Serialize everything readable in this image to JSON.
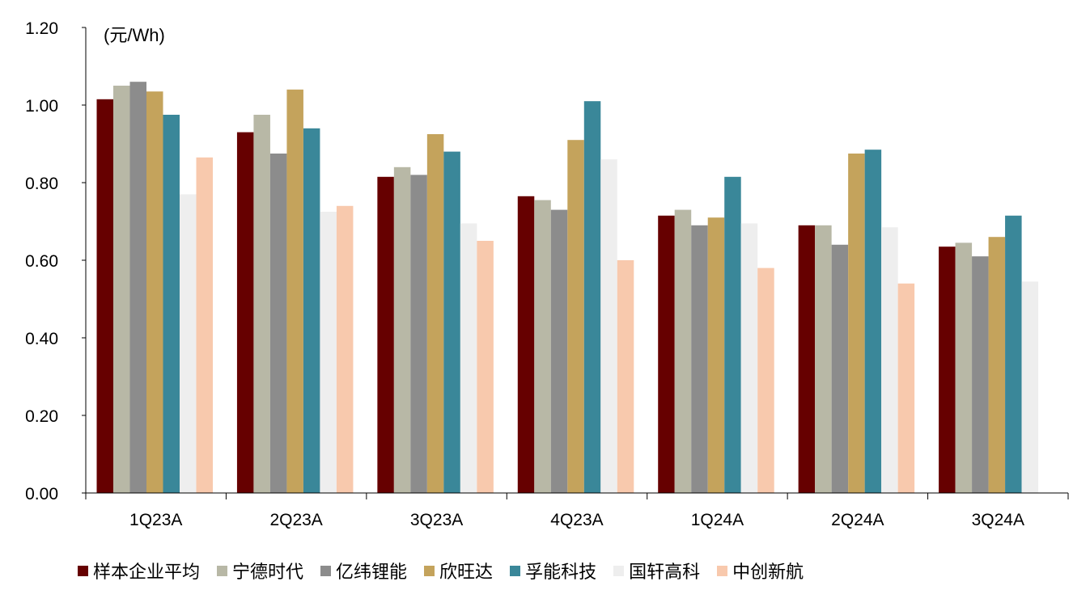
{
  "chart_data": {
    "type": "bar",
    "unit_label": "(元/Wh)",
    "categories": [
      "1Q23A",
      "2Q23A",
      "3Q23A",
      "4Q23A",
      "1Q24A",
      "2Q24A",
      "3Q24A"
    ],
    "ylim": [
      0,
      1.2
    ],
    "yticks": [
      "0.00",
      "0.20",
      "0.40",
      "0.60",
      "0.80",
      "1.00",
      "1.20"
    ],
    "grid": false,
    "legend_position": "bottom",
    "series": [
      {
        "name": "样本企业平均",
        "color": "#660000",
        "values": [
          1.015,
          0.93,
          0.815,
          0.765,
          0.715,
          0.69,
          0.635
        ]
      },
      {
        "name": "宁德时代",
        "color": "#B8B8A6",
        "values": [
          1.05,
          0.975,
          0.84,
          0.755,
          0.73,
          0.69,
          0.645
        ]
      },
      {
        "name": "亿纬锂能",
        "color": "#8C8C8C",
        "values": [
          1.06,
          0.875,
          0.82,
          0.73,
          0.69,
          0.64,
          0.61
        ]
      },
      {
        "name": "欣旺达",
        "color": "#C4A35C",
        "values": [
          1.035,
          1.04,
          0.925,
          0.91,
          0.71,
          0.875,
          0.66
        ]
      },
      {
        "name": "孚能科技",
        "color": "#3A8799",
        "values": [
          0.975,
          0.94,
          0.88,
          1.01,
          0.815,
          0.885,
          0.715
        ]
      },
      {
        "name": "国轩高科",
        "color": "#EEEEEE",
        "values": [
          0.77,
          0.725,
          0.695,
          0.86,
          0.695,
          0.685,
          0.545
        ]
      },
      {
        "name": "中创新航",
        "color": "#F8C9AD",
        "values": [
          0.865,
          0.74,
          0.65,
          0.6,
          0.58,
          0.54,
          null
        ]
      }
    ]
  }
}
